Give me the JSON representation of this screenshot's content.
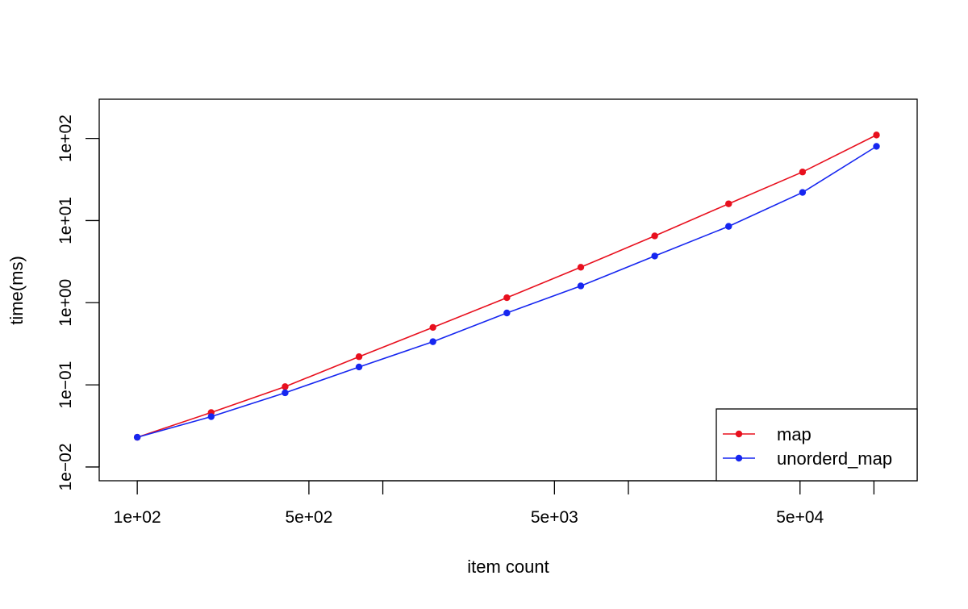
{
  "chart_data": {
    "type": "line",
    "title": "",
    "xlabel": "item count",
    "ylabel": "time(ms)",
    "x_scale": "log",
    "y_scale": "log",
    "x": [
      100,
      200,
      400,
      800,
      1600,
      3200,
      6400,
      12800,
      25600,
      51200,
      102400
    ],
    "xlim": [
      70,
      150000
    ],
    "ylim": [
      0.0068,
      300
    ],
    "x_ticks": [
      {
        "value": 100,
        "label": "1e+02"
      },
      {
        "value": 500,
        "label": "5e+02"
      },
      {
        "value": 1000,
        "label": ""
      },
      {
        "value": 5000,
        "label": "5e+03"
      },
      {
        "value": 10000,
        "label": ""
      },
      {
        "value": 50000,
        "label": "5e+04"
      },
      {
        "value": 100000,
        "label": ""
      }
    ],
    "y_ticks": [
      {
        "value": 0.01,
        "label": "1e−02"
      },
      {
        "value": 0.1,
        "label": "1e−01"
      },
      {
        "value": 1,
        "label": "1e+00"
      },
      {
        "value": 10,
        "label": "1e+01"
      },
      {
        "value": 100,
        "label": "1e+02"
      }
    ],
    "grid": false,
    "legend_position": "bottom-right",
    "series": [
      {
        "name": "map",
        "color": "#e8101e",
        "values": [
          0.023,
          0.046,
          0.095,
          0.22,
          0.5,
          1.15,
          2.7,
          6.5,
          16,
          39,
          110
        ]
      },
      {
        "name": "unorderd_map",
        "color": "#1626f0",
        "values": [
          0.023,
          0.041,
          0.08,
          0.165,
          0.335,
          0.75,
          1.6,
          3.7,
          8.5,
          22,
          80
        ]
      }
    ]
  }
}
